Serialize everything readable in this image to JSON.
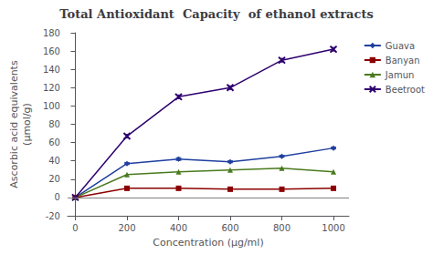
{
  "chart_data": {
    "type": "line",
    "title": "Total Antioxidant  Capacity  of ethanol extracts",
    "xlabel": "Concentration (μg/ml)",
    "ylabel": "Ascorbic acid equivalents\n(μmol/g)",
    "x": [
      0,
      200,
      400,
      600,
      800,
      1000
    ],
    "series": [
      {
        "name": "Guava",
        "color": "#1f3f9f",
        "marker": "diamond",
        "values": [
          0,
          37,
          42,
          39,
          45,
          54
        ],
        "error": [
          0,
          1,
          1.5,
          1,
          1,
          1
        ]
      },
      {
        "name": "Banyan",
        "color": "#8B0000",
        "marker": "square",
        "values": [
          0,
          10,
          10,
          9,
          9,
          10
        ]
      },
      {
        "name": "Jamun",
        "color": "#4a7a1e",
        "marker": "triangle",
        "values": [
          0,
          25,
          28,
          30,
          32,
          28
        ]
      },
      {
        "name": "Beetroot",
        "color": "#2d006e",
        "marker": "x",
        "values": [
          0,
          67,
          110,
          120,
          150,
          162
        ],
        "error": [
          0,
          2,
          2,
          2,
          2,
          2
        ]
      }
    ],
    "xlim": [
      -30,
      1060
    ],
    "xticks": [
      0,
      200,
      400,
      600,
      800,
      1000
    ],
    "ylim": [
      -20,
      180
    ],
    "yticks": [
      -20,
      0,
      20,
      40,
      60,
      80,
      100,
      120,
      140,
      160,
      180
    ],
    "hlines": [
      0
    ],
    "legend": "upper right",
    "grid": false
  }
}
